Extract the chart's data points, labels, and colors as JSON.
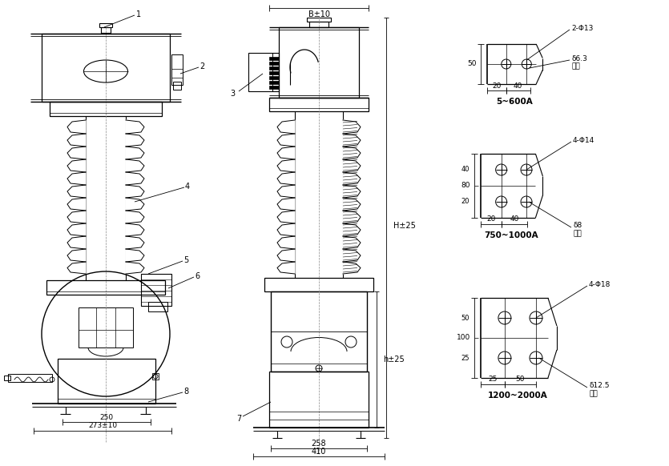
{
  "bg_color": "#ffffff",
  "line_color": "#000000",
  "dim_left_250": "250",
  "dim_left_273": "273±10",
  "dim_right_B": "B±10",
  "dim_right_258": "258",
  "dim_right_410": "410",
  "dim_H": "H±25",
  "dim_h": "h±25",
  "panel1_label": "5~600A",
  "panel1_hole": "2-Φ13",
  "panel1_thick": "δ6.3",
  "panel1_fudu": "厚度",
  "panel1_h": "50",
  "panel1_w1": "20",
  "panel1_w2": "40",
  "panel2_label": "750~1000A",
  "panel2_hole": "4-Φ14",
  "panel2_thick": "δ8",
  "panel2_fudu": "厚度",
  "panel2_h": "80",
  "panel2_h1": "40",
  "panel2_h2": "20",
  "panel2_w1": "20",
  "panel2_w2": "40",
  "panel3_label": "1200~2000A",
  "panel3_hole": "4-Φ18",
  "panel3_thick": "δ12.5",
  "panel3_fudu": "厚度",
  "panel3_h": "100",
  "panel3_h1": "50",
  "panel3_h2": "25",
  "panel3_w1": "25",
  "panel3_w2": "50"
}
